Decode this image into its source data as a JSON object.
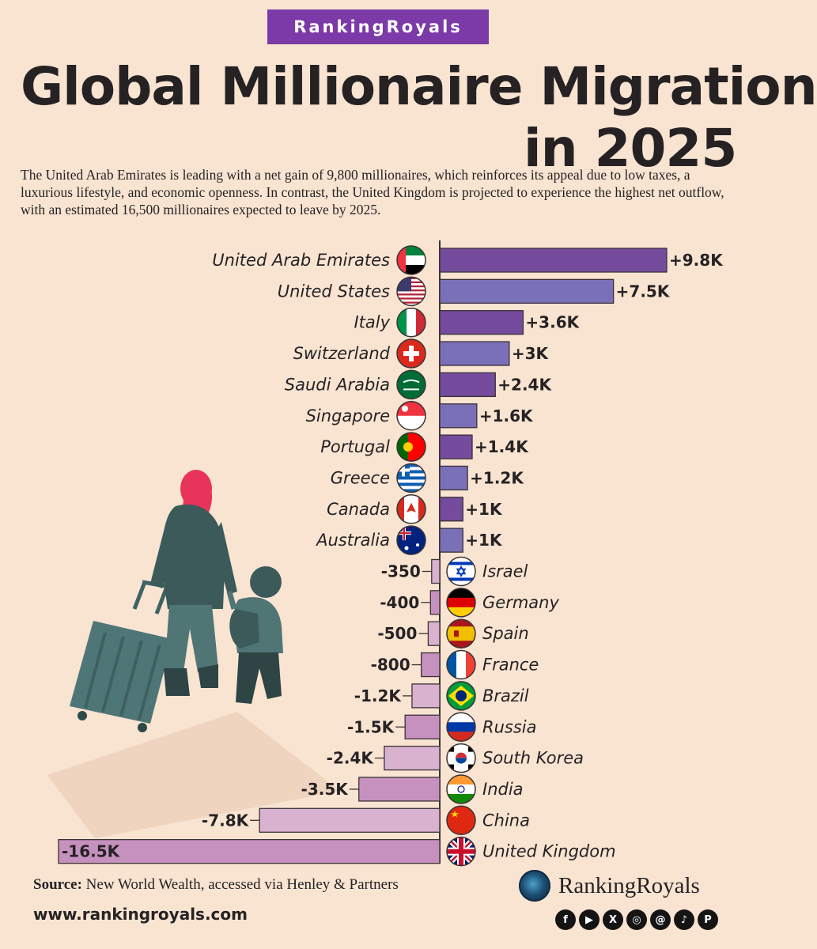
{
  "brand": {
    "badge": "RankingRoyals",
    "footer_name": "RankingRoyals",
    "website": "www.rankingroyals.com",
    "accent_color": "#7c3aa8"
  },
  "title": {
    "line1": "Global Millionaire Migration",
    "line2": "in 2025"
  },
  "intro": "The United Arab Emirates is leading with a net gain of 9,800 millionaires, which reinforces its appeal due to low taxes, a luxurious lifestyle, and economic openness. In contrast, the United Kingdom is projected to experience the highest net outflow, with an estimated 16,500 millionaires expected to leave by 2025.",
  "source": {
    "label": "Source:",
    "text": "New World Wealth, accessed via Henley & Partners"
  },
  "socials": [
    {
      "icon": "facebook-icon",
      "glyph": "f"
    },
    {
      "icon": "youtube-icon",
      "glyph": "▶"
    },
    {
      "icon": "x-icon",
      "glyph": "X"
    },
    {
      "icon": "instagram-icon",
      "glyph": "◎"
    },
    {
      "icon": "threads-icon",
      "glyph": "@"
    },
    {
      "icon": "tiktok-icon",
      "glyph": "♪"
    },
    {
      "icon": "pinterest-icon",
      "glyph": "P"
    }
  ],
  "chart_data": {
    "type": "bar",
    "orientation": "horizontal",
    "title": "Global Millionaire Migration in 2025",
    "xlabel": "",
    "ylabel": "",
    "unit": "net change in millionaires",
    "categories": [
      "United Arab Emirates",
      "United States",
      "Italy",
      "Switzerland",
      "Saudi Arabia",
      "Singapore",
      "Portugal",
      "Greece",
      "Canada",
      "Australia",
      "Israel",
      "Germany",
      "Spain",
      "France",
      "Brazil",
      "Russia",
      "South Korea",
      "India",
      "China",
      "United Kingdom"
    ],
    "values": [
      9800,
      7500,
      3600,
      3000,
      2400,
      1600,
      1400,
      1200,
      1000,
      1000,
      -350,
      -400,
      -500,
      -800,
      -1200,
      -1500,
      -2400,
      -3500,
      -7800,
      -16500
    ],
    "value_labels": [
      "+9.8K",
      "+7.5K",
      "+3.6K",
      "+3K",
      "+2.4K",
      "+1.6K",
      "+1.4K",
      "+1.2K",
      "+1K",
      "+1K",
      "-350",
      "-400",
      "-500",
      "-800",
      "-1.2K",
      "-1.5K",
      "-2.4K",
      "-3.5K",
      "-7.8K",
      "-16.5K"
    ],
    "flags": [
      "uae-flag-icon",
      "usa-flag-icon",
      "italy-flag-icon",
      "switzerland-flag-icon",
      "saudi-arabia-flag-icon",
      "singapore-flag-icon",
      "portugal-flag-icon",
      "greece-flag-icon",
      "canada-flag-icon",
      "australia-flag-icon",
      "israel-flag-icon",
      "germany-flag-icon",
      "spain-flag-icon",
      "france-flag-icon",
      "brazil-flag-icon",
      "russia-flag-icon",
      "south-korea-flag-icon",
      "india-flag-icon",
      "china-flag-icon",
      "uk-flag-icon"
    ],
    "positive_colors": [
      "#754b9e",
      "#7a70b8"
    ],
    "negative_colors": [
      "#d9b2cf",
      "#c691be"
    ],
    "xlim": [
      -16500,
      9800
    ],
    "grid": false,
    "legend": "none"
  }
}
